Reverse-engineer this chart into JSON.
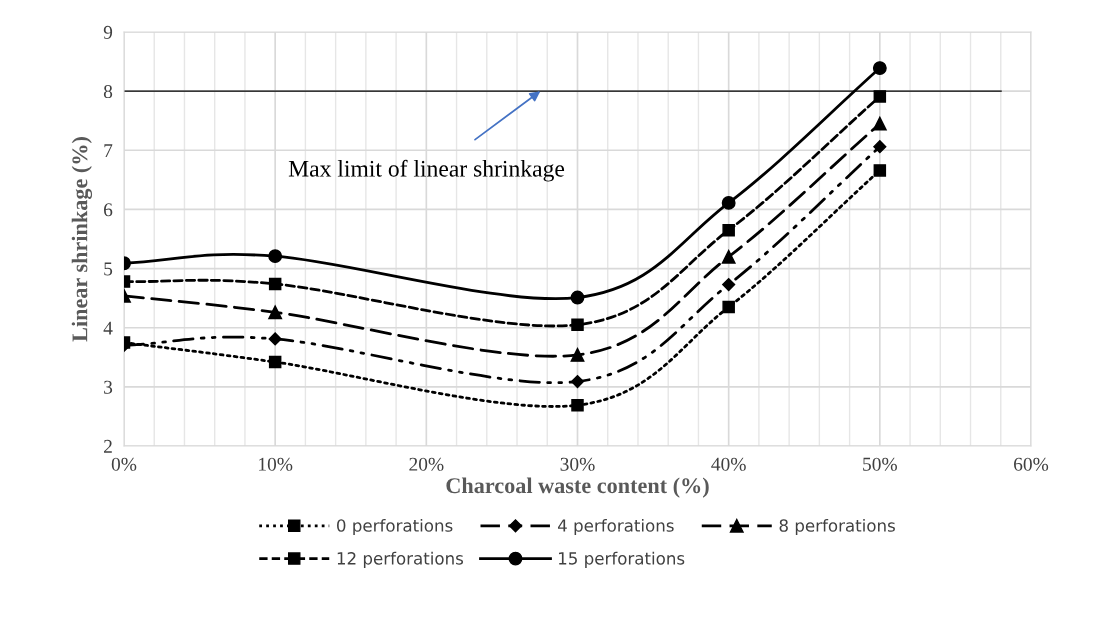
{
  "chart_data": {
    "type": "line",
    "xlabel": "Charcoal waste content (%)",
    "ylabel": "Linear shrinkage (%)",
    "x": [
      0,
      0.1,
      0.3,
      0.4,
      0.5
    ],
    "xlim": [
      0,
      0.6
    ],
    "xticks": [
      {
        "value": 0,
        "label": "0%"
      },
      {
        "value": 0.1,
        "label": "10%"
      },
      {
        "value": 0.2,
        "label": "20%"
      },
      {
        "value": 0.3,
        "label": "30%"
      },
      {
        "value": 0.4,
        "label": "40%"
      },
      {
        "value": 0.5,
        "label": "50%"
      },
      {
        "value": 0.6,
        "label": "60%"
      }
    ],
    "ylim": [
      2,
      9
    ],
    "yticks": [
      2,
      3,
      4,
      5,
      6,
      7,
      8,
      9
    ],
    "grid": true,
    "legend": "bottom",
    "series": [
      {
        "name": "0 perforations",
        "color": "#000000",
        "marker": "square",
        "line_style": "dotted",
        "values": [
          3.75,
          3.42,
          2.69,
          4.35,
          6.66
        ]
      },
      {
        "name": "4 perforations",
        "color": "#000000",
        "marker": "diamond",
        "line_style": "dashdotdot",
        "values": [
          3.7,
          3.81,
          3.09,
          4.73,
          7.06
        ]
      },
      {
        "name": "8 perforations",
        "color": "#000000",
        "marker": "triangle",
        "line_style": "longdash",
        "values": [
          4.54,
          4.26,
          3.54,
          5.2,
          7.45
        ]
      },
      {
        "name": "12 perforations",
        "color": "#000000",
        "marker": "square",
        "line_style": "dashed",
        "values": [
          4.78,
          4.74,
          4.05,
          5.65,
          7.91
        ]
      },
      {
        "name": "15 perforations",
        "color": "#000000",
        "marker": "circle",
        "line_style": "solid",
        "values": [
          5.09,
          5.21,
          4.51,
          6.11,
          8.39
        ]
      }
    ],
    "ref_lines": [
      {
        "axis": "y",
        "value": 8,
        "label": "Max limit of linear shrinkage",
        "color": "#000000",
        "line_style": "solid"
      }
    ]
  }
}
